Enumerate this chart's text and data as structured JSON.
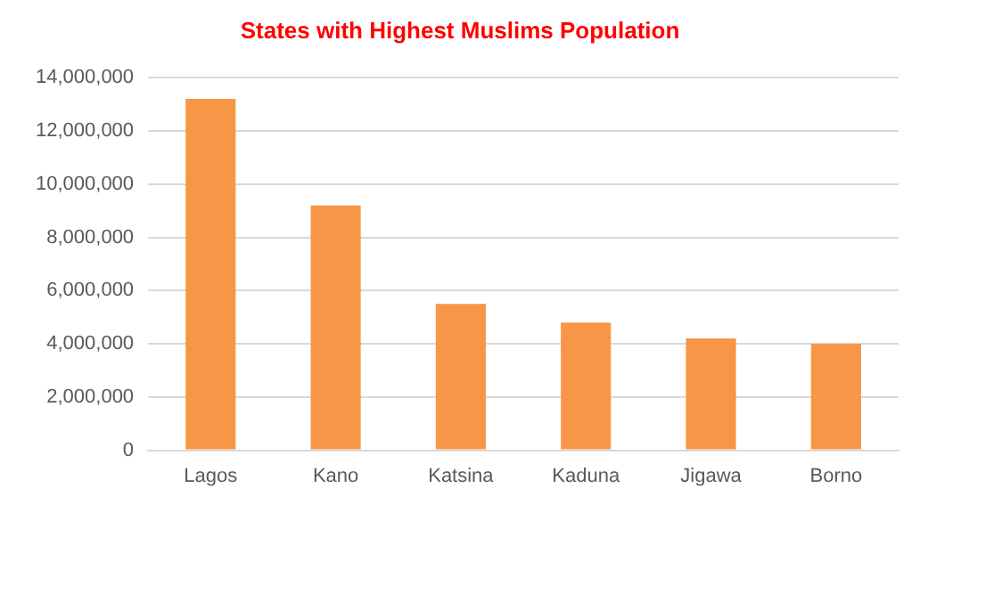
{
  "chart_data": {
    "type": "bar",
    "title": "States with Highest Muslims Population",
    "categories": [
      "Lagos",
      "Kano",
      "Katsina",
      "Kaduna",
      "Jigawa",
      "Borno"
    ],
    "values": [
      13200000,
      9200000,
      5500000,
      4800000,
      4200000,
      4000000
    ],
    "color": "#f79646",
    "ylim": [
      0,
      14000000
    ],
    "yticks": [
      0,
      {
        "value": 2000000,
        "label": "2,000,000"
      },
      {
        "value": 4000000,
        "label": "4,000,000"
      },
      {
        "value": 6000000,
        "label": "6,000,000"
      },
      {
        "value": 8000000,
        "label": "8,000,000"
      },
      {
        "value": 10000000,
        "label": "10,000,000"
      },
      {
        "value": 12000000,
        "label": "12,000,000"
      },
      {
        "value": 14000000,
        "label": "14,000,000"
      }
    ],
    "grid": "y",
    "legend": false
  }
}
